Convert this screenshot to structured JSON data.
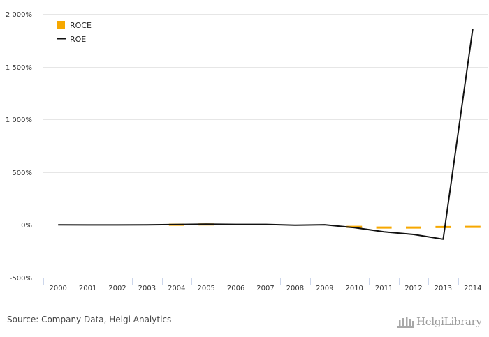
{
  "chart_data": {
    "type": "line",
    "categories": [
      "2000",
      "2001",
      "2002",
      "2003",
      "2004",
      "2005",
      "2006",
      "2007",
      "2008",
      "2009",
      "2010",
      "2011",
      "2012",
      "2013",
      "2014"
    ],
    "series": [
      {
        "name": "ROCE",
        "style": "dashed",
        "color": "#f6a800",
        "values": [
          null,
          null,
          null,
          null,
          1.8,
          4.5,
          null,
          null,
          null,
          null,
          -18,
          -25,
          -25,
          -20,
          -18
        ]
      },
      {
        "name": "ROE",
        "style": "solid",
        "color": "#111111",
        "values": [
          0.5,
          0.3,
          0.2,
          0.4,
          4.0,
          8.0,
          5.0,
          5.0,
          -2.0,
          2.0,
          -25,
          -65,
          -90,
          -135,
          1860
        ]
      }
    ],
    "y_ticks": [
      -500,
      0,
      500,
      1000,
      1500,
      2000
    ],
    "y_tick_labels": [
      "-500%",
      "0%",
      "500%",
      "1 000%",
      "1 500%",
      "2 000%"
    ],
    "ylim": [
      -500,
      2000
    ],
    "grid": true,
    "legend_position": "top-left",
    "source": "Source: Company Data, Helgi Analytics"
  },
  "brand": {
    "name": "HelgiLibrary"
  },
  "colors": {
    "grid": "#e6e6e6",
    "axis": "#ccd6eb"
  }
}
